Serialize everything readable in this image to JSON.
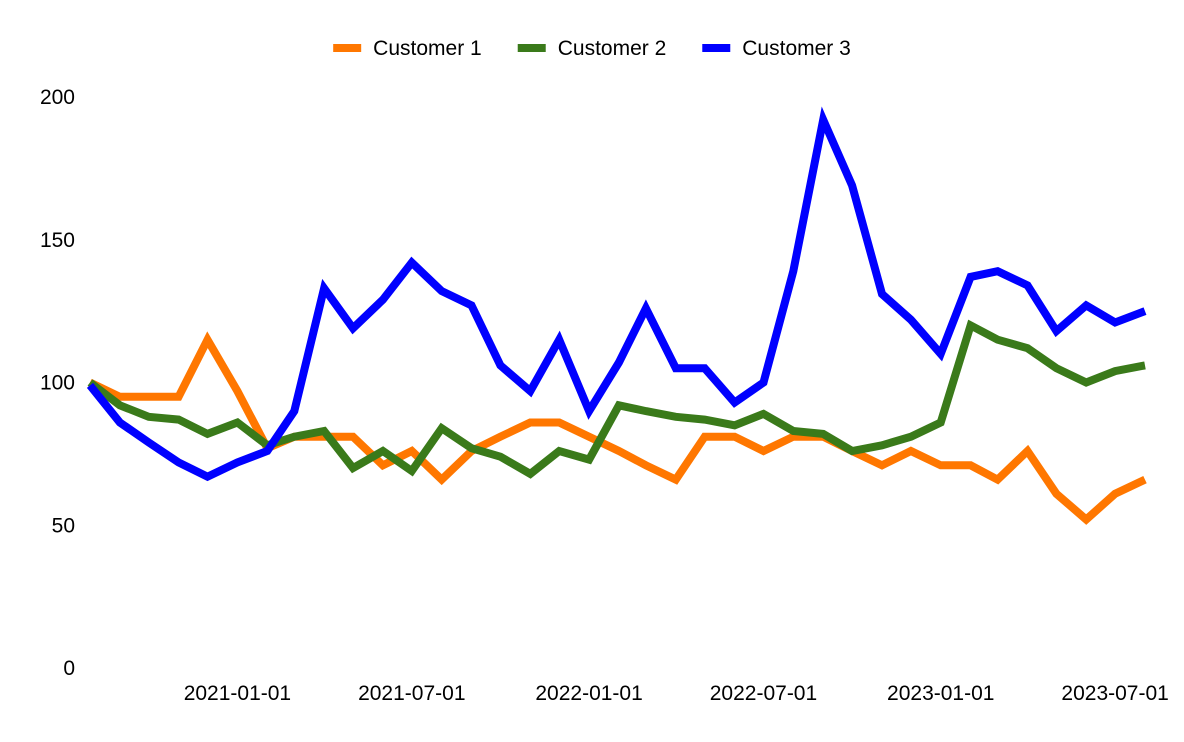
{
  "chart_data": {
    "type": "line",
    "title": "",
    "xlabel": "",
    "ylabel": "",
    "ylim": [
      0,
      200
    ],
    "xlim": [
      "2020-08-01",
      "2023-08-01"
    ],
    "yticks": [
      0,
      50,
      100,
      150,
      200
    ],
    "ytick_labels": [
      "0",
      "50",
      "100",
      "150",
      "200"
    ],
    "xticks": [
      "2021-01-01",
      "2021-07-01",
      "2022-01-01",
      "2022-07-01",
      "2023-01-01",
      "2023-07-01"
    ],
    "xtick_labels": [
      "2021-01-01",
      "2021-07-01",
      "2022-01-01",
      "2022-07-01",
      "2023-01-01",
      "2023-07-01"
    ],
    "grid": false,
    "legend_position": "top-center",
    "x": [
      "2020-08-01",
      "2020-09-01",
      "2020-10-01",
      "2020-11-01",
      "2020-12-01",
      "2021-01-01",
      "2021-02-01",
      "2021-03-01",
      "2021-04-01",
      "2021-05-01",
      "2021-06-01",
      "2021-07-01",
      "2021-08-01",
      "2021-09-01",
      "2021-10-01",
      "2021-11-01",
      "2021-12-01",
      "2022-01-01",
      "2022-02-01",
      "2022-03-01",
      "2022-04-01",
      "2022-05-01",
      "2022-06-01",
      "2022-07-01",
      "2022-08-01",
      "2022-09-01",
      "2022-10-01",
      "2022-11-01",
      "2022-12-01",
      "2023-01-01",
      "2023-02-01",
      "2023-03-01",
      "2023-04-01",
      "2023-05-01",
      "2023-06-01",
      "2023-07-01",
      "2023-08-01"
    ],
    "series": [
      {
        "name": "Customer 1",
        "color": "#ff7700",
        "values": [
          100,
          95,
          95,
          95,
          115,
          97,
          77,
          81,
          81,
          81,
          71,
          76,
          66,
          76,
          81,
          86,
          86,
          81,
          76,
          71,
          66,
          81,
          81,
          76,
          81,
          81,
          76,
          71,
          76,
          71,
          71,
          66,
          76,
          61,
          52,
          61,
          66
        ]
      },
      {
        "name": "Customer 2",
        "color": "#3a7a1a",
        "values": [
          100,
          92,
          88,
          87,
          82,
          86,
          78,
          81,
          83,
          70,
          76,
          69,
          84,
          77,
          74,
          68,
          76,
          73,
          92,
          90,
          88,
          87,
          85,
          89,
          83,
          82,
          76,
          78,
          81,
          86,
          120,
          115,
          112,
          105,
          100,
          104,
          106
        ]
      },
      {
        "name": "Customer 3",
        "color": "#0000ff",
        "values": [
          99,
          86,
          79,
          72,
          67,
          72,
          76,
          90,
          133,
          119,
          129,
          142,
          132,
          127,
          106,
          97,
          115,
          90,
          107,
          126,
          105,
          105,
          93,
          100,
          139,
          192,
          169,
          131,
          122,
          110,
          137,
          139,
          134,
          118,
          127,
          121,
          125
        ]
      }
    ]
  }
}
